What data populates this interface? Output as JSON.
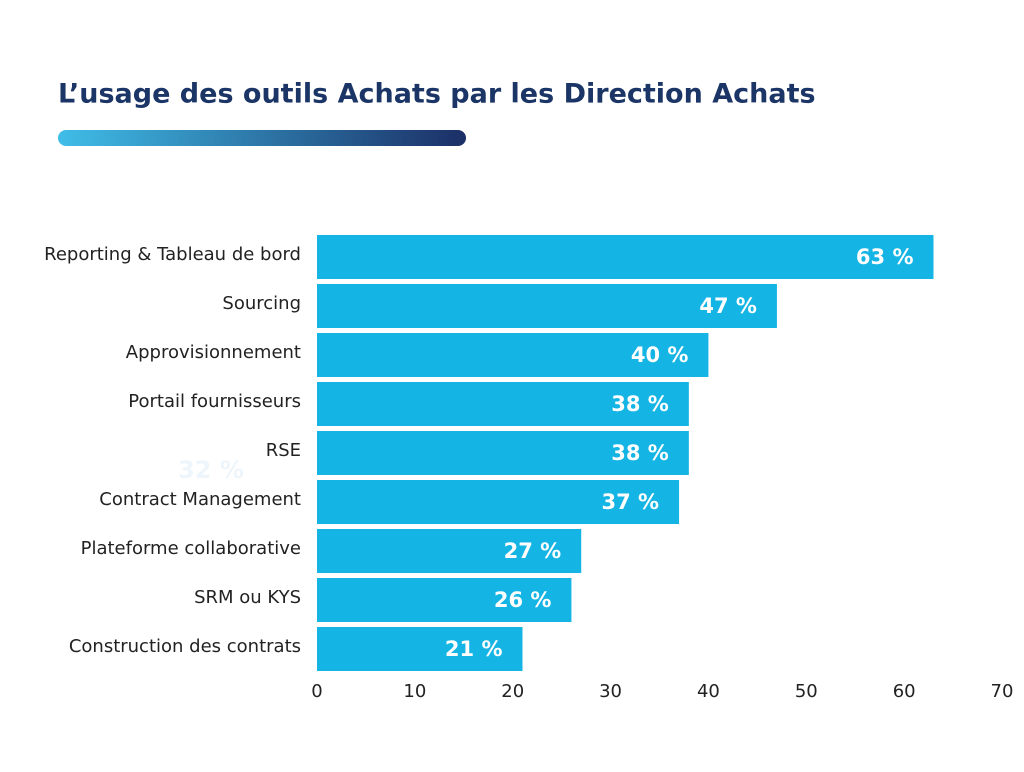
{
  "chart_data": {
    "type": "bar",
    "orientation": "horizontal",
    "title": "L’usage des outils Achats par les Direction Achats",
    "categories": [
      "Reporting & Tableau de bord",
      "Sourcing",
      "Approvisionnement",
      "Portail fournisseurs",
      "RSE",
      "Contract Management",
      "Plateforme collaborative",
      "SRM ou KYS",
      "Construction des contrats"
    ],
    "values": [
      63,
      47,
      40,
      38,
      38,
      37,
      27,
      26,
      21
    ],
    "value_labels": [
      "63 %",
      "47 %",
      "40 %",
      "38 %",
      "38 %",
      "37 %",
      "27 %",
      "26 %",
      "21 %"
    ],
    "color": "#14b4e4",
    "xlim": [
      0,
      70
    ],
    "xticks": [
      0,
      10,
      20,
      30,
      40,
      50,
      60,
      70
    ],
    "annotation": "32 %"
  }
}
